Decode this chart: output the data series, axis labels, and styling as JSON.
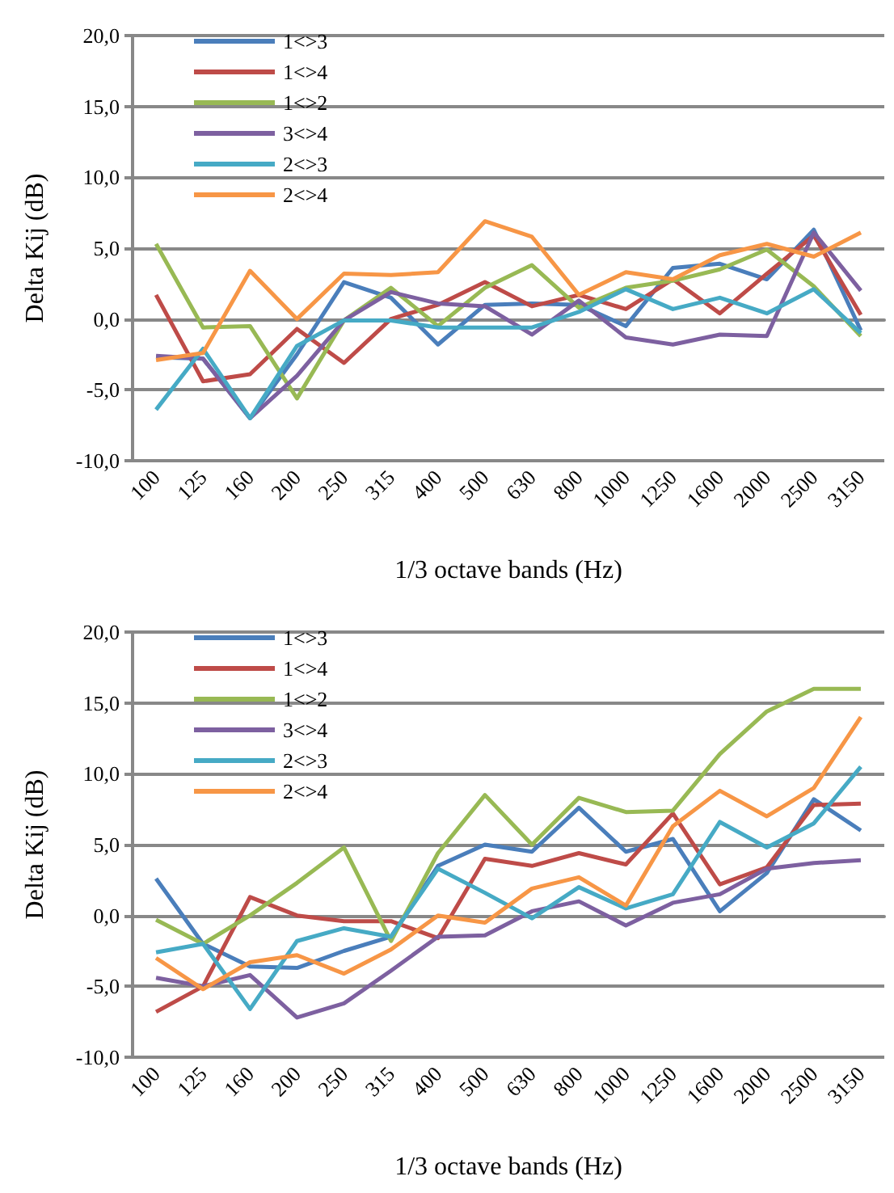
{
  "chart_data": [
    {
      "type": "line",
      "xlabel": "1/3 octave bands (Hz)",
      "ylabel": "Delta Kij (dB)",
      "categories": [
        "100",
        "125",
        "160",
        "200",
        "250",
        "315",
        "400",
        "500",
        "630",
        "800",
        "1000",
        "1250",
        "1600",
        "2000",
        "2500",
        "3150"
      ],
      "ylim": [
        -10,
        20
      ],
      "yticks": [
        {
          "value": -10,
          "label": "-10,0"
        },
        {
          "value": -5,
          "label": "-5,0"
        },
        {
          "value": 0,
          "label": "0,0"
        },
        {
          "value": 5,
          "label": "5,0"
        },
        {
          "value": 10,
          "label": "10,0"
        },
        {
          "value": 15,
          "label": "15,0"
        },
        {
          "value": 20,
          "label": "20,0"
        }
      ],
      "grid": "y",
      "legend": "top left",
      "marker": "none",
      "series": [
        {
          "name": "1<>3",
          "color": "#4a7ebb",
          "values": [
            -2.7,
            -2.8,
            -7,
            -2.5,
            2.6,
            1.5,
            -1.8,
            1.0,
            1.1,
            1.0,
            -0.5,
            3.6,
            3.9,
            2.8,
            6.3,
            -0.8
          ]
        },
        {
          "name": "1<>4",
          "color": "#be4b48",
          "values": [
            1.7,
            -4.4,
            -3.9,
            -0.7,
            -3.1,
            0.0,
            1.0,
            2.6,
            0.9,
            1.7,
            0.7,
            2.8,
            0.4,
            3.2,
            5.9,
            0.3
          ]
        },
        {
          "name": "1<>2",
          "color": "#98b954",
          "values": [
            5.3,
            -0.6,
            -0.5,
            -5.6,
            -0.1,
            2.2,
            -0.5,
            2.2,
            3.8,
            0.8,
            2.2,
            2.7,
            3.5,
            4.9,
            2.3,
            -1.2
          ]
        },
        {
          "name": "3<>4",
          "color": "#7d60a0",
          "values": [
            -2.6,
            -2.8,
            -7,
            -4,
            -0.1,
            1.9,
            1.1,
            0.9,
            -1.1,
            1.3,
            -1.3,
            -1.8,
            -1.1,
            -1.2,
            6.1,
            2.0
          ]
        },
        {
          "name": "2<>3",
          "color": "#46aac5",
          "values": [
            -6.4,
            -2.1,
            -7,
            -1.9,
            -0.1,
            -0.1,
            -0.6,
            -0.6,
            -0.6,
            0.5,
            2.1,
            0.7,
            1.5,
            0.4,
            2.1,
            -1.0
          ]
        },
        {
          "name": "2<>4",
          "color": "#f79646",
          "values": [
            -2.9,
            -2.4,
            3.4,
            0.0,
            3.2,
            3.1,
            3.3,
            6.9,
            5.8,
            1.7,
            3.3,
            2.8,
            4.5,
            5.3,
            4.4,
            6.1
          ]
        }
      ]
    },
    {
      "type": "line",
      "xlabel": "1/3 octave bands (Hz)",
      "ylabel": "Delta Kij (dB)",
      "categories": [
        "100",
        "125",
        "160",
        "200",
        "250",
        "315",
        "400",
        "500",
        "630",
        "800",
        "1000",
        "1250",
        "1600",
        "2000",
        "2500",
        "3150"
      ],
      "ylim": [
        -10,
        20
      ],
      "yticks": [
        {
          "value": -10,
          "label": "-10,0"
        },
        {
          "value": -5,
          "label": "-5,0"
        },
        {
          "value": 0,
          "label": "0,0"
        },
        {
          "value": 5,
          "label": "5,0"
        },
        {
          "value": 10,
          "label": "10,0"
        },
        {
          "value": 15,
          "label": "15,0"
        },
        {
          "value": 20,
          "label": "20,0"
        }
      ],
      "grid": "y",
      "legend": "top left",
      "marker": "none",
      "series": [
        {
          "name": "1<>3",
          "color": "#4a7ebb",
          "values": [
            2.6,
            -2.0,
            -3.6,
            -3.7,
            -2.5,
            -1.5,
            3.5,
            5.0,
            4.5,
            7.6,
            4.5,
            5.4,
            0.3,
            3.0,
            8.2,
            6.0
          ]
        },
        {
          "name": "1<>4",
          "color": "#be4b48",
          "values": [
            -6.8,
            -5,
            1.3,
            0,
            -0.4,
            -0.4,
            -1.6,
            4.0,
            3.5,
            4.4,
            3.6,
            7.2,
            2.2,
            3.4,
            7.8,
            7.9
          ]
        },
        {
          "name": "1<>2",
          "color": "#98b954",
          "values": [
            -0.3,
            -2.0,
            0,
            2.3,
            4.8,
            -1.8,
            4.4,
            8.5,
            5.0,
            8.3,
            7.3,
            7.4,
            11.4,
            14.4,
            16,
            16
          ]
        },
        {
          "name": "3<>4",
          "color": "#7d60a0",
          "values": [
            -4.4,
            -5,
            -4.2,
            -7.2,
            -6.2,
            -3.9,
            -1.5,
            -1.4,
            0.3,
            1.0,
            -0.7,
            0.9,
            1.5,
            3.3,
            3.7,
            3.9
          ]
        },
        {
          "name": "2<>3",
          "color": "#46aac5",
          "values": [
            -2.6,
            -2.0,
            -6.6,
            -1.8,
            -0.9,
            -1.5,
            3.3,
            1.6,
            -0.2,
            2.0,
            0.5,
            1.5,
            6.6,
            4.8,
            6.5,
            10.5
          ]
        },
        {
          "name": "2<>4",
          "color": "#f79646",
          "values": [
            -3.0,
            -5.2,
            -3.3,
            -2.8,
            -4.1,
            -2.4,
            0.0,
            -0.5,
            1.9,
            2.7,
            0.7,
            6.3,
            8.8,
            7.0,
            9.0,
            14.0
          ]
        }
      ]
    }
  ]
}
